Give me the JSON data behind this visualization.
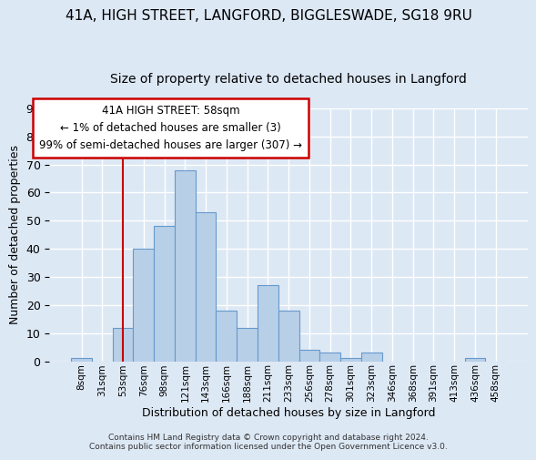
{
  "title1": "41A, HIGH STREET, LANGFORD, BIGGLESWADE, SG18 9RU",
  "title2": "Size of property relative to detached houses in Langford",
  "xlabel": "Distribution of detached houses by size in Langford",
  "ylabel": "Number of detached properties",
  "bar_labels": [
    "8sqm",
    "31sqm",
    "53sqm",
    "76sqm",
    "98sqm",
    "121sqm",
    "143sqm",
    "166sqm",
    "188sqm",
    "211sqm",
    "233sqm",
    "256sqm",
    "278sqm",
    "301sqm",
    "323sqm",
    "346sqm",
    "368sqm",
    "391sqm",
    "413sqm",
    "436sqm",
    "458sqm"
  ],
  "bar_heights": [
    1,
    0,
    12,
    40,
    48,
    68,
    53,
    18,
    12,
    27,
    18,
    4,
    3,
    1,
    3,
    0,
    0,
    0,
    0,
    1,
    0
  ],
  "bar_color": "#b8cfe8",
  "bar_edge_color": "#6699cc",
  "bg_color": "#dde8f5",
  "grid_color": "#ffffff",
  "vline_color": "#cc0000",
  "annotation_text": "41A HIGH STREET: 58sqm\n← 1% of detached houses are smaller (3)\n99% of semi-detached houses are larger (307) →",
  "annotation_box_color": "#ffffff",
  "annotation_box_edge_color": "#cc0000",
  "footnote": "Contains HM Land Registry data © Crown copyright and database right 2024.\nContains public sector information licensed under the Open Government Licence v3.0.",
  "ylim": [
    0,
    90
  ],
  "yticks": [
    0,
    10,
    20,
    30,
    40,
    50,
    60,
    70,
    80,
    90
  ]
}
